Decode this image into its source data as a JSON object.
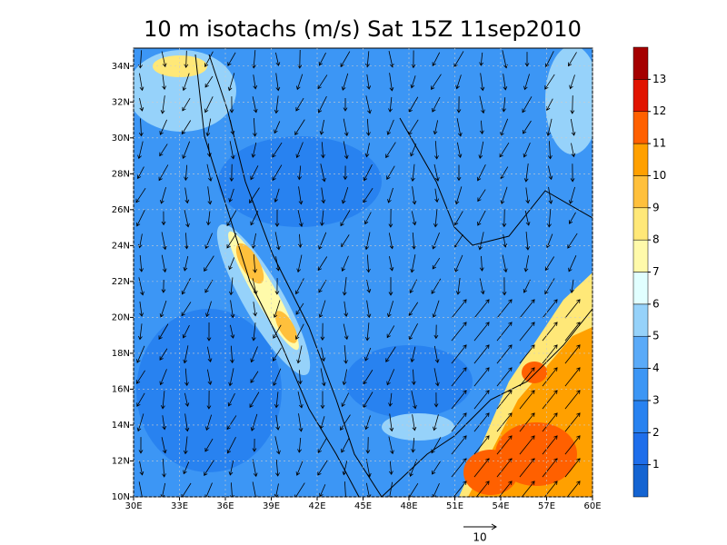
{
  "chart_data": {
    "type": "map",
    "title": "10 m isotachs (m/s) Sat 15Z 11sep2010",
    "xlim": [
      30,
      60
    ],
    "ylim": [
      10,
      35
    ],
    "xticks": [
      {
        "value": 30,
        "label": "30E"
      },
      {
        "value": 33,
        "label": "33E"
      },
      {
        "value": 36,
        "label": "36E"
      },
      {
        "value": 39,
        "label": "39E"
      },
      {
        "value": 42,
        "label": "42E"
      },
      {
        "value": 45,
        "label": "45E"
      },
      {
        "value": 48,
        "label": "48E"
      },
      {
        "value": 51,
        "label": "51E"
      },
      {
        "value": 54,
        "label": "54E"
      },
      {
        "value": 57,
        "label": "57E"
      },
      {
        "value": 60,
        "label": "60E"
      }
    ],
    "yticks": [
      {
        "value": 10,
        "label": "10N"
      },
      {
        "value": 12,
        "label": "12N"
      },
      {
        "value": 14,
        "label": "14N"
      },
      {
        "value": 16,
        "label": "16N"
      },
      {
        "value": 18,
        "label": "18N"
      },
      {
        "value": 20,
        "label": "20N"
      },
      {
        "value": 22,
        "label": "22N"
      },
      {
        "value": 24,
        "label": "24N"
      },
      {
        "value": 26,
        "label": "26N"
      },
      {
        "value": 28,
        "label": "28N"
      },
      {
        "value": 30,
        "label": "30N"
      },
      {
        "value": 32,
        "label": "32N"
      },
      {
        "value": 34,
        "label": "34N"
      }
    ],
    "grid": true,
    "levels": [
      1,
      2,
      3,
      4,
      5,
      6,
      7,
      8,
      9,
      10,
      11,
      12,
      13
    ],
    "colors": [
      "#1464d2",
      "#1e6eeb",
      "#2882f0",
      "#3c96f5",
      "#5aaaf8",
      "#96d2fa",
      "#e1ffff",
      "#fffaaa",
      "#ffe878",
      "#ffc03c",
      "#ffa000",
      "#ff6000",
      "#e11400",
      "#a50000"
    ],
    "reference_vector": 10
  }
}
